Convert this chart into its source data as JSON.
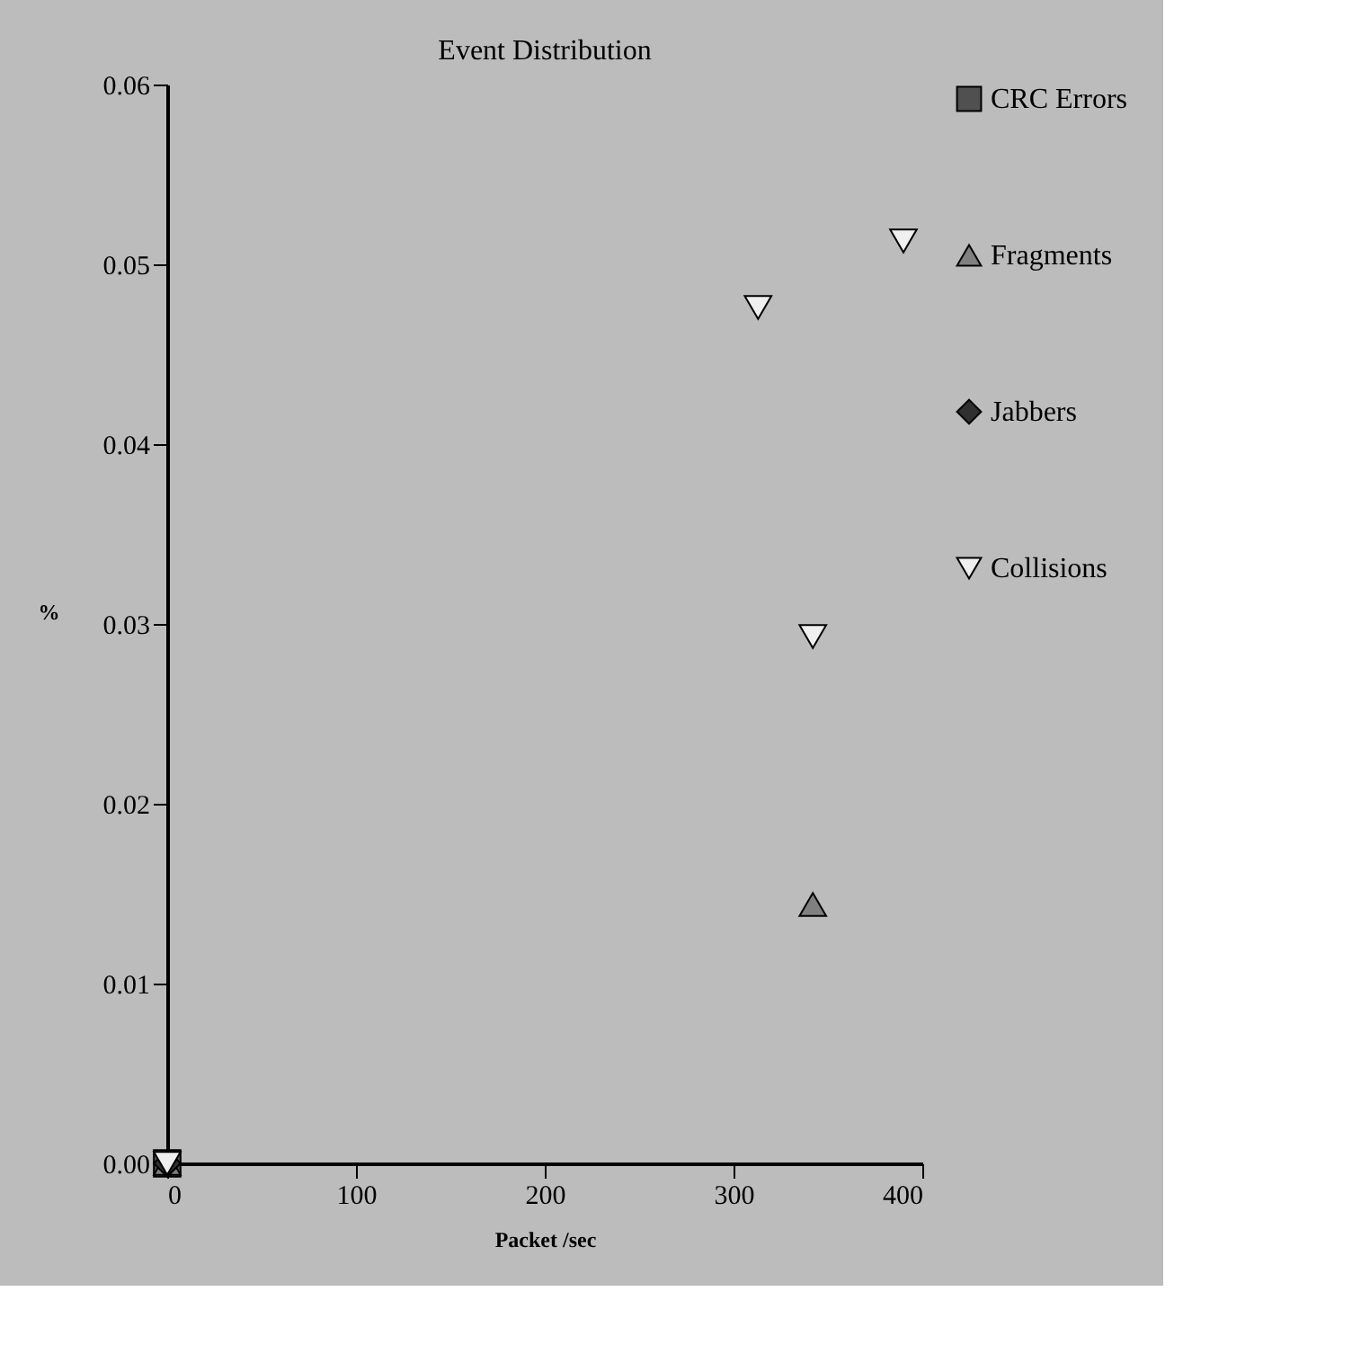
{
  "chart_data": {
    "type": "scatter",
    "title": "Event Distribution",
    "xlabel": "Packet /sec",
    "ylabel": "%",
    "xlim": [
      0,
      400
    ],
    "xticks": [
      0,
      100,
      200,
      300,
      400
    ],
    "ylim": [
      0,
      0.06
    ],
    "yticks": [
      {
        "value": 0,
        "label": "0.00"
      },
      0.01,
      0.02,
      0.03,
      0.04,
      0.05,
      0.06
    ],
    "grid": false,
    "legend": "right",
    "series": [
      {
        "name": "CRC Errors",
        "color": "#505050",
        "marker": "square",
        "x": [
          0
        ],
        "values": [
          0
        ]
      },
      {
        "name": "Fragments",
        "color": "#808080",
        "marker": "triangle",
        "x": [
          0,
          342
        ],
        "values": [
          0,
          0.0144
        ]
      },
      {
        "name": "Jabbers",
        "color": "#303030",
        "marker": "diamond",
        "x": [
          0
        ],
        "values": [
          0
        ]
      },
      {
        "name": "Collisions",
        "color": "#f0f0f0",
        "marker": "triangle-down",
        "x": [
          0,
          313,
          390,
          342
        ],
        "values": [
          0,
          0.0476,
          0.0513,
          0.0293
        ]
      }
    ]
  }
}
